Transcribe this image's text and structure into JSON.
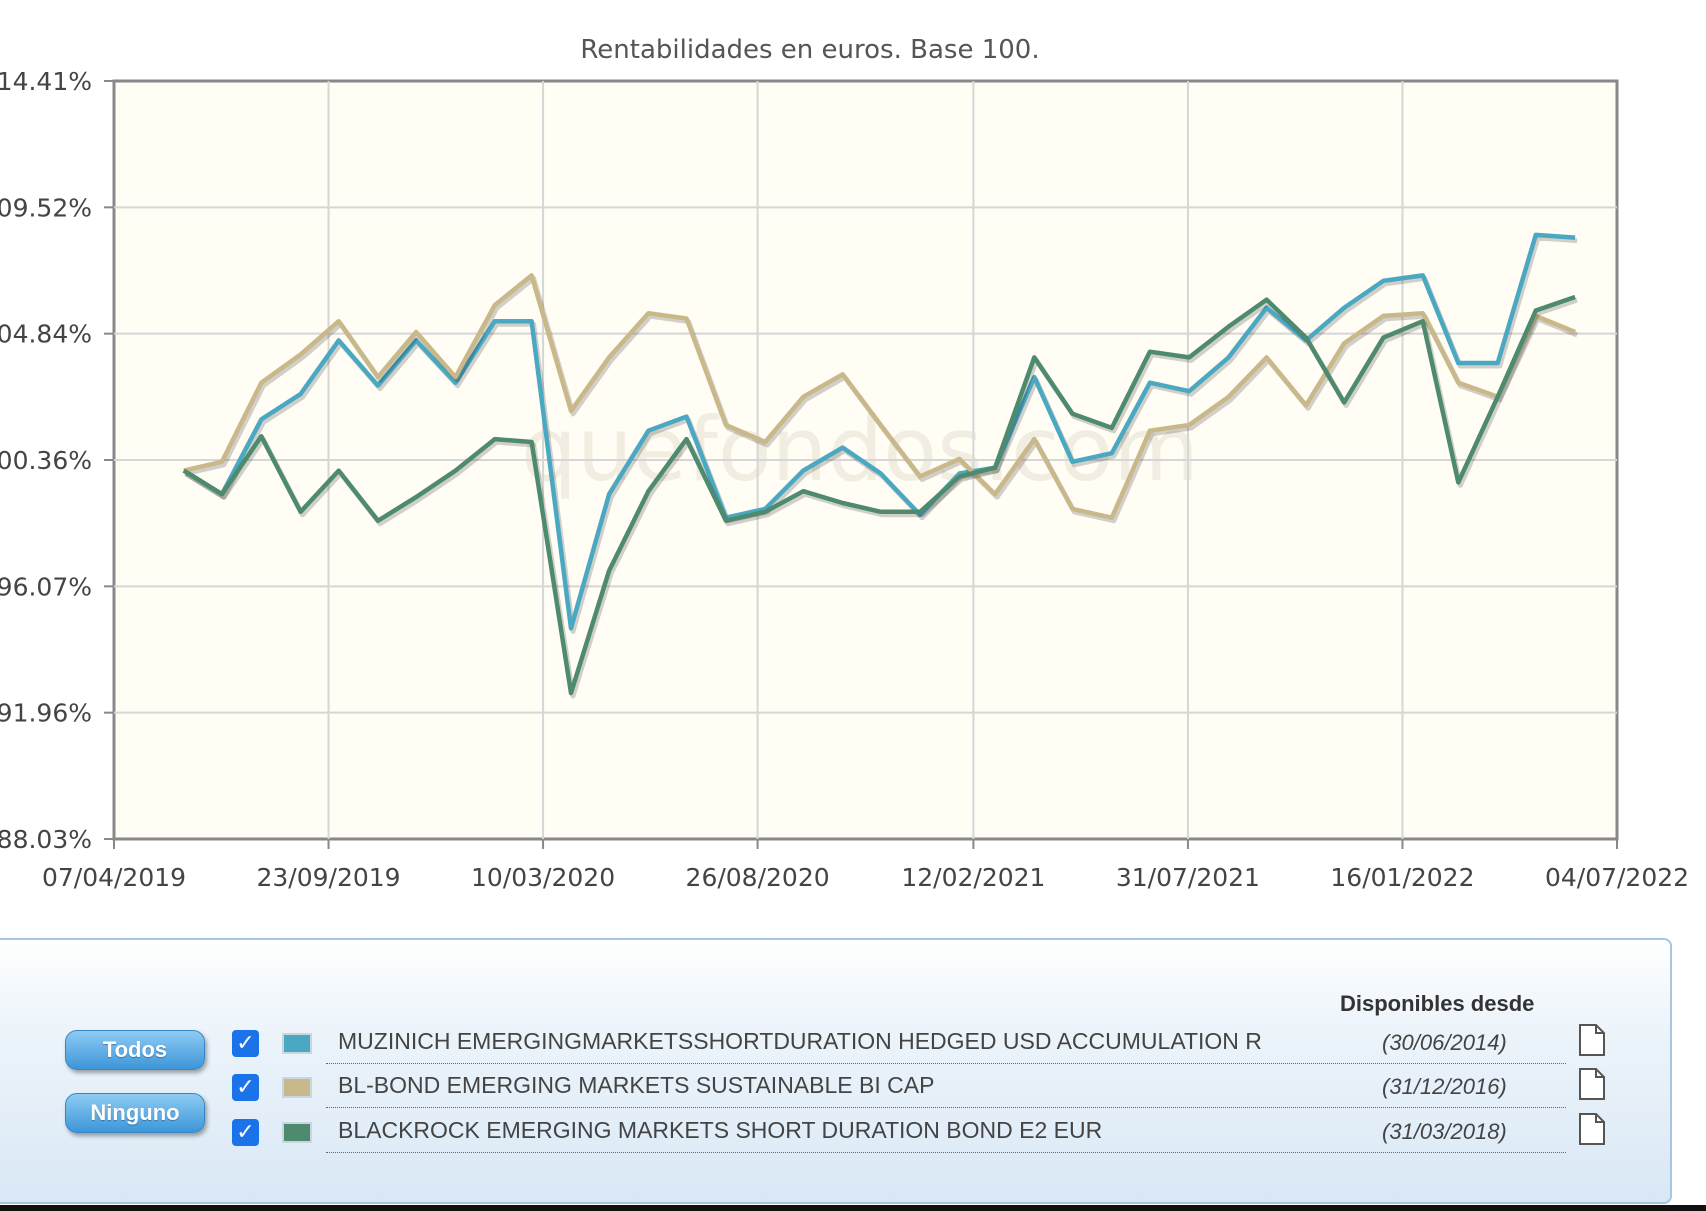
{
  "chart_data": {
    "type": "line",
    "title": "Rentabilidades en euros. Base 100.",
    "xlabel": "",
    "ylabel": "",
    "x_ticks": [
      "07/04/2019",
      "23/09/2019",
      "10/03/2020",
      "26/08/2020",
      "12/02/2021",
      "31/07/2021",
      "16/01/2022",
      "04/07/2022"
    ],
    "x_range": [
      "07/04/2019",
      "04/07/2022"
    ],
    "y_ticks": [
      "88.03%",
      "91.96%",
      "96.07%",
      "00.36%",
      "04.84%",
      "09.52%",
      "14.41%"
    ],
    "grid": true,
    "watermark": "quefondos.com",
    "x": [
      "2019-06-01",
      "2019-07-01",
      "2019-08-01",
      "2019-09-01",
      "2019-10-01",
      "2019-11-01",
      "2019-12-01",
      "2020-01-01",
      "2020-02-01",
      "2020-03-01",
      "2020-04-01",
      "2020-05-01",
      "2020-06-01",
      "2020-07-01",
      "2020-08-01",
      "2020-09-01",
      "2020-10-01",
      "2020-11-01",
      "2020-12-01",
      "2021-01-01",
      "2021-02-01",
      "2021-03-01",
      "2021-04-01",
      "2021-05-01",
      "2021-06-01",
      "2021-07-01",
      "2021-08-01",
      "2021-09-01",
      "2021-10-01",
      "2021-11-01",
      "2021-12-01",
      "2022-01-01",
      "2022-02-01",
      "2022-03-01",
      "2022-04-01",
      "2022-05-01",
      "2022-06-01"
    ],
    "series": [
      {
        "name": "MUZINICH EMERGINGMARKETSSHORTDURATION HEDGED USD ACCUMULATION R",
        "color": "#4aa8c2",
        "values": [
          100.0,
          99.2,
          101.8,
          102.7,
          104.6,
          103.0,
          104.6,
          103.1,
          105.3,
          105.3,
          94.7,
          99.2,
          101.4,
          101.9,
          98.4,
          98.7,
          100.0,
          100.8,
          99.9,
          98.5,
          99.9,
          100.1,
          103.3,
          100.3,
          100.6,
          103.1,
          102.8,
          104.0,
          105.8,
          104.6,
          105.8,
          106.8,
          107.0,
          103.8,
          103.8,
          108.5,
          108.4
        ]
      },
      {
        "name": "BL-BOND EMERGING MARKETS SUSTAINABLE BI CAP",
        "color": "#c8b88a",
        "values": [
          100.0,
          100.3,
          103.1,
          104.1,
          105.3,
          103.3,
          104.9,
          103.3,
          105.9,
          107.0,
          102.1,
          104.0,
          105.6,
          105.4,
          101.6,
          101.0,
          102.6,
          103.4,
          101.6,
          99.8,
          100.4,
          99.2,
          101.1,
          98.7,
          98.4,
          101.4,
          101.6,
          102.6,
          104.0,
          102.3,
          104.5,
          105.5,
          105.6,
          103.1,
          102.6,
          105.5,
          104.9
        ]
      },
      {
        "name": "BLACKROCK EMERGING MARKETS SHORT DURATION BOND E2 EUR",
        "color": "#4e8a6e",
        "values": [
          100.0,
          99.2,
          101.2,
          98.6,
          100.0,
          98.3,
          99.1,
          100.0,
          101.1,
          101.0,
          92.6,
          96.6,
          99.3,
          101.1,
          98.3,
          98.6,
          99.3,
          98.9,
          98.6,
          98.6,
          99.8,
          100.1,
          104.0,
          102.0,
          101.5,
          104.2,
          104.0,
          105.1,
          106.1,
          104.7,
          102.4,
          104.7,
          105.3,
          99.6,
          102.6,
          105.7,
          106.2
        ]
      }
    ]
  },
  "legend": {
    "todos_label": "Todos",
    "ninguno_label": "Ninguno",
    "header": "Disponibles desde",
    "checkmark": "✓",
    "rows": [
      {
        "name": "MUZINICH EMERGINGMARKETSSHORTDURATION HEDGED USD ACCUMULATION R",
        "date": "(30/06/2014)",
        "color": "#4aa8c2"
      },
      {
        "name": "BL-BOND EMERGING MARKETS SUSTAINABLE BI CAP",
        "date": "(31/12/2016)",
        "color": "#c8b88a"
      },
      {
        "name": "BLACKROCK EMERGING MARKETS SHORT DURATION BOND E2 EUR",
        "date": "(31/03/2018)",
        "color": "#4e8a6e"
      }
    ]
  }
}
